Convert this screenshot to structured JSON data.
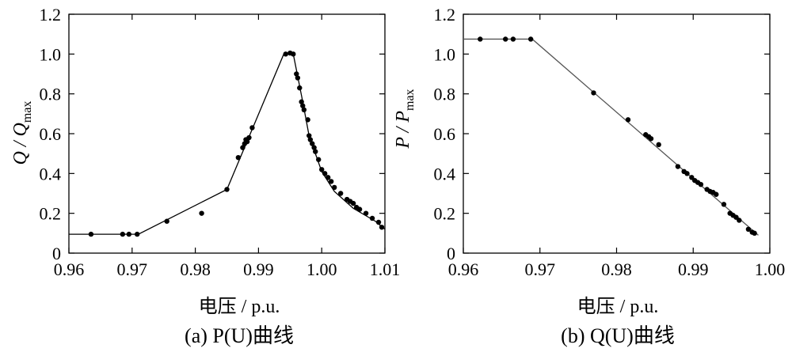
{
  "chart_data": [
    {
      "type": "scatter",
      "caption": "(a)  P(U)曲线",
      "xlabel": "电压 / p.u.",
      "ylabel": "Q / Qmax",
      "xlim": [
        0.96,
        1.01
      ],
      "ylim": [
        0,
        1.2
      ],
      "xticks": [
        "0.96",
        "0.97",
        "0.98",
        "0.99",
        "1.00",
        "1.01"
      ],
      "yticks": [
        "0",
        "0.2",
        "0.4",
        "0.6",
        "0.8",
        "1.0",
        "1.2"
      ],
      "curve": {
        "x": [
          0.96,
          0.971,
          0.985,
          0.994,
          0.9955,
          0.997,
          0.998,
          1.0,
          1.002,
          1.005,
          1.0085,
          1.01
        ],
        "y": [
          0.095,
          0.095,
          0.32,
          1.0,
          1.0,
          0.76,
          0.59,
          0.41,
          0.31,
          0.225,
          0.16,
          0.12
        ]
      },
      "points": {
        "x": [
          0.9635,
          0.9685,
          0.9695,
          0.9708,
          0.9755,
          0.981,
          0.985,
          0.9868,
          0.9875,
          0.9878,
          0.988,
          0.9882,
          0.9885,
          0.989,
          0.9943,
          0.995,
          0.9955,
          0.996,
          0.9962,
          0.9965,
          0.9968,
          0.997,
          0.9972,
          0.9978,
          0.998,
          0.9982,
          0.9985,
          0.9988,
          0.999,
          0.9995,
          1.0,
          1.0005,
          1.001,
          1.0015,
          1.002,
          1.003,
          1.004,
          1.0045,
          1.005,
          1.0055,
          1.006,
          1.007,
          1.008,
          1.009,
          1.0095
        ],
        "y": [
          0.095,
          0.095,
          0.095,
          0.095,
          0.16,
          0.2,
          0.32,
          0.48,
          0.53,
          0.55,
          0.57,
          0.56,
          0.58,
          0.63,
          1.0,
          1.005,
          1.0,
          0.9,
          0.88,
          0.83,
          0.76,
          0.74,
          0.72,
          0.67,
          0.59,
          0.57,
          0.55,
          0.53,
          0.51,
          0.47,
          0.42,
          0.4,
          0.38,
          0.36,
          0.33,
          0.3,
          0.27,
          0.26,
          0.25,
          0.23,
          0.22,
          0.2,
          0.175,
          0.155,
          0.13
        ]
      }
    },
    {
      "type": "scatter",
      "caption": "(b)  Q(U)曲线",
      "xlabel": "电压 / p.u.",
      "ylabel": "P / Pmax",
      "xlim": [
        0.96,
        1.0
      ],
      "ylim": [
        0,
        1.2
      ],
      "xticks": [
        "0.96",
        "0.97",
        "0.98",
        "0.99",
        "1.00"
      ],
      "yticks": [
        "0",
        "0.2",
        "0.4",
        "0.6",
        "0.8",
        "1.0",
        "1.2"
      ],
      "curve": {
        "x": [
          0.96,
          0.969,
          0.9985
        ],
        "y": [
          1.075,
          1.075,
          0.09
        ]
      },
      "points": {
        "x": [
          0.9622,
          0.9655,
          0.9665,
          0.9688,
          0.977,
          0.9815,
          0.9838,
          0.9842,
          0.9845,
          0.9855,
          0.988,
          0.9888,
          0.9892,
          0.9898,
          0.9902,
          0.9906,
          0.991,
          0.9918,
          0.9922,
          0.9926,
          0.993,
          0.994,
          0.9948,
          0.9952,
          0.9956,
          0.996,
          0.9972,
          0.9977,
          0.998
        ],
        "y": [
          1.075,
          1.075,
          1.075,
          1.075,
          0.805,
          0.67,
          0.595,
          0.585,
          0.575,
          0.545,
          0.435,
          0.41,
          0.4,
          0.38,
          0.365,
          0.355,
          0.345,
          0.32,
          0.31,
          0.305,
          0.295,
          0.245,
          0.2,
          0.19,
          0.18,
          0.165,
          0.12,
          0.105,
          0.1
        ]
      }
    }
  ]
}
